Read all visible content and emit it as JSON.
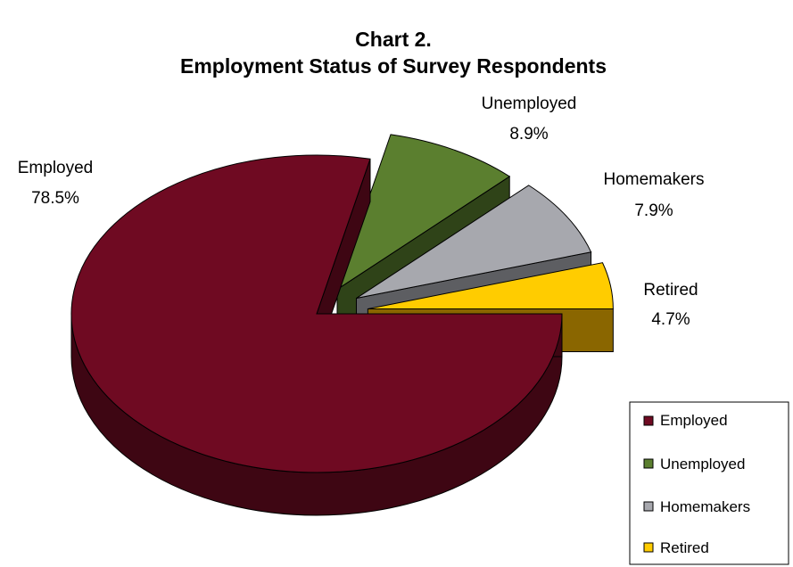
{
  "chart_data": {
    "type": "pie",
    "title": "Chart 2.",
    "subtitle": "Employment Status of Survey Respondents",
    "categories": [
      "Employed",
      "Unemployed",
      "Homemakers",
      "Retired"
    ],
    "values": [
      78.5,
      8.9,
      7.9,
      4.7
    ],
    "value_labels": [
      "78.5%",
      "8.9%",
      "7.9%",
      "4.7%"
    ],
    "colors": [
      "#6F0A22",
      "#5B7F2F",
      "#A7A8AE",
      "#FFCC00"
    ],
    "side_colors": [
      "#3E0613",
      "#2F4318",
      "#5D5E62",
      "#8A6600"
    ],
    "style": "3d-exploded",
    "legend": {
      "placement": "bottom-right",
      "entries": [
        "Employed",
        "Unemployed",
        "Homemakers",
        "Retired"
      ]
    }
  }
}
